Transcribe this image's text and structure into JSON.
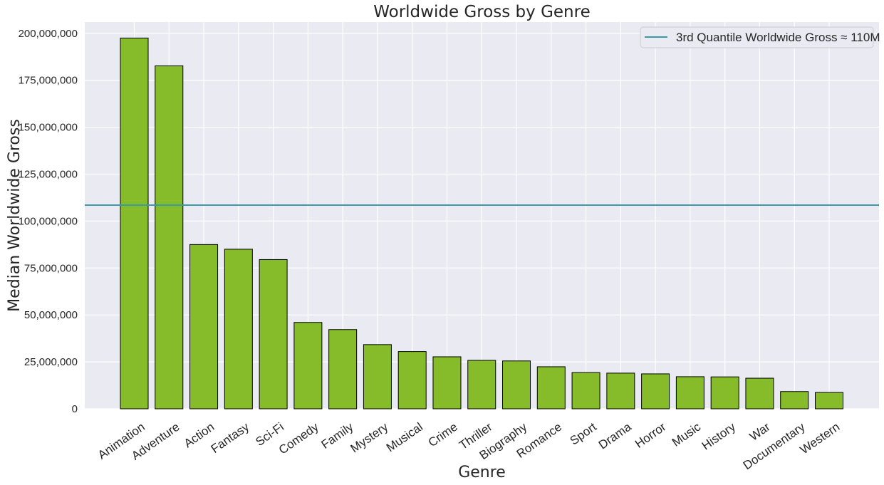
{
  "chart_data": {
    "type": "bar",
    "title": "Worldwide Gross by Genre",
    "xlabel": "Genre",
    "ylabel": "Median Worldwide Gross",
    "categories": [
      "Animation",
      "Adventure",
      "Action",
      "Fantasy",
      "Sci-Fi",
      "Comedy",
      "Family",
      "Mystery",
      "Musical",
      "Crime",
      "Thriller",
      "Biography",
      "Romance",
      "Sport",
      "Drama",
      "Horror",
      "Music",
      "History",
      "War",
      "Documentary",
      "Western"
    ],
    "values": [
      197500000,
      182700000,
      87500000,
      85000000,
      79500000,
      46000000,
      42200000,
      34200000,
      30500000,
      27700000,
      25800000,
      25500000,
      22400000,
      19300000,
      19000000,
      18600000,
      17100000,
      17000000,
      16300000,
      9200000,
      8700000
    ],
    "ylim": [
      0,
      206000000
    ],
    "yticks": [
      0,
      25000000,
      50000000,
      75000000,
      100000000,
      125000000,
      150000000,
      175000000,
      200000000
    ],
    "ytick_labels": [
      "0",
      "25,000,000",
      "50,000,000",
      "75,000,000",
      "100,000,000",
      "125,000,000",
      "150,000,000",
      "175,000,000",
      "200,000,000"
    ],
    "reference_line": {
      "label": "3rd Quantile Worldwide Gross ≈ 110M",
      "value": 108500000
    },
    "legend_position": "top-right",
    "grid": true,
    "colors": {
      "bar": "#86bc29",
      "bar_edge": "#000000",
      "line": "#3a9aa8",
      "background": "#eaeaf2",
      "grid": "#ffffff"
    }
  }
}
